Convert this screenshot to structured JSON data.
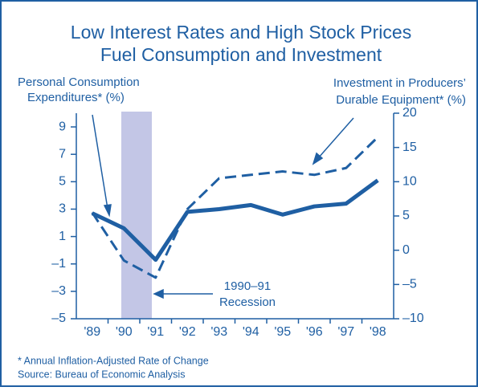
{
  "chart_data": {
    "type": "line",
    "title": [
      "Low Interest Rates and High Stock Prices",
      "Fuel Consumption and Investment"
    ],
    "ylabel": [
      "Personal Consumption",
      "Expenditures* (%)"
    ],
    "y2label": [
      "Investment in Producers’",
      "Durable Equipment* (%)"
    ],
    "annotation": [
      "1990–91",
      "Recession"
    ],
    "footnotes": [
      "* Annual Inflation-Adjusted Rate of Change",
      "Source: Bureau of Economic Analysis"
    ],
    "categories": [
      "'89",
      "'90",
      "'91",
      "'92",
      "'93",
      "'94",
      "'95",
      "'96",
      "'97",
      "'98"
    ],
    "series": [
      {
        "name": "Personal Consumption Expenditures",
        "color": "#1f5fa3",
        "style": "solid",
        "values": [
          2.7,
          1.6,
          -0.7,
          2.8,
          3.0,
          3.3,
          2.6,
          3.2,
          3.4,
          5.1
        ]
      },
      {
        "name": "Investment in Producers' Durable Equipment",
        "color": "#1f5fa3",
        "style": "dashed",
        "axis": "y2",
        "values": [
          5.5,
          -1.5,
          -4,
          6,
          10.5,
          11,
          11.5,
          11,
          12,
          16.5
        ]
      }
    ],
    "ylim": [
      -5,
      10
    ],
    "yticks": [
      {
        "value": -5,
        "label": "–5"
      },
      {
        "value": -3,
        "label": "–3"
      },
      {
        "value": -1,
        "label": "–1"
      },
      1,
      3,
      5,
      7,
      9
    ],
    "y2lim": [
      -10,
      20
    ],
    "y2ticks": [
      {
        "value": -10,
        "label": "–10"
      },
      {
        "value": -5,
        "label": "–5"
      },
      0,
      5,
      10,
      15,
      20
    ]
  }
}
